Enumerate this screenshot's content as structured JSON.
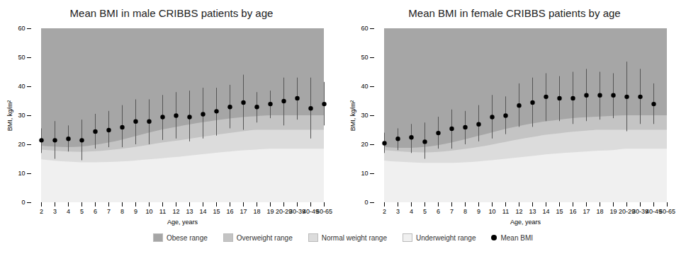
{
  "chart_data": [
    {
      "type": "scatter",
      "title": "Mean BMI in male CRIBBS patients by age",
      "x_label": "Age, years",
      "y_label": "BMI, kg/m²",
      "categories": [
        "2",
        "3",
        "4",
        "5",
        "6",
        "7",
        "8",
        "9",
        "10",
        "11",
        "12",
        "13",
        "14",
        "15",
        "16",
        "17",
        "18",
        "19",
        "20-29",
        "30-39",
        "40-49",
        "50-65"
      ],
      "ylim": [
        0,
        60
      ],
      "yticks": [
        0,
        10,
        20,
        30,
        40,
        50,
        60
      ],
      "grid": false,
      "legend": "bottom",
      "series": [
        {
          "name": "Obese range",
          "type": "area",
          "color": "#a6a6a6",
          "values": [
            60,
            60,
            60,
            60,
            60,
            60,
            60,
            60,
            60,
            60,
            60,
            60,
            60,
            60,
            60,
            60,
            60,
            60,
            60,
            60,
            60,
            60
          ]
        },
        {
          "name": "Overweight range",
          "type": "area",
          "color": "#c4c4c4",
          "values": [
            19.5,
            19.2,
            19,
            19.2,
            19.8,
            20.6,
            21.6,
            22.8,
            24,
            25.1,
            26,
            26.8,
            27.6,
            28.3,
            28.9,
            29.4,
            29.7,
            30,
            30,
            30,
            30,
            30
          ]
        },
        {
          "name": "Normal weight range",
          "type": "area",
          "color": "#dcdcdc",
          "values": [
            18.2,
            17.8,
            17.5,
            17.4,
            17.6,
            18,
            18.5,
            19.1,
            19.8,
            20.6,
            21.2,
            21.9,
            22.6,
            23.3,
            23.9,
            24.5,
            25,
            25,
            25,
            25,
            25,
            25
          ]
        },
        {
          "name": "Underweight range",
          "type": "area",
          "color": "#f0f0f0",
          "values": [
            14.8,
            14.3,
            14,
            13.8,
            13.8,
            13.9,
            14.1,
            14.4,
            14.8,
            15.2,
            15.6,
            16.1,
            16.6,
            17.1,
            17.5,
            17.9,
            18.2,
            18.5,
            18.5,
            18.5,
            18.5,
            18.5
          ]
        },
        {
          "name": "Mean BMI",
          "type": "scatter",
          "color": "#000000",
          "marker": "circle",
          "values": [
            21.5,
            21.5,
            22,
            21.5,
            24.5,
            25,
            26,
            28,
            28,
            29.5,
            30,
            29.5,
            30.5,
            31.5,
            33,
            34.5,
            33,
            34,
            35,
            36,
            32.5,
            34
          ],
          "error_low": [
            17,
            15,
            17.5,
            14.5,
            18.5,
            19,
            19,
            20,
            20,
            21.5,
            22,
            21,
            22,
            23,
            25.5,
            25,
            27.5,
            29,
            26.5,
            28.5,
            22,
            26.5
          ],
          "error_high": [
            25.5,
            28,
            26.5,
            28.5,
            30.5,
            31.5,
            33.5,
            35.5,
            35.5,
            37,
            38,
            38.5,
            39.5,
            39.5,
            40.5,
            44,
            38,
            38.5,
            43,
            43,
            43,
            41.5
          ]
        }
      ]
    },
    {
      "type": "scatter",
      "title": "Mean BMI in female CRIBBS patients by age",
      "x_label": "Age, years",
      "y_label": "BMI, kg/m²",
      "categories": [
        "2",
        "3",
        "4",
        "5",
        "6",
        "7",
        "8",
        "9",
        "10",
        "11",
        "12",
        "13",
        "14",
        "15",
        "16",
        "17",
        "18",
        "19",
        "20-29",
        "30-39",
        "40-49",
        "50-65"
      ],
      "ylim": [
        0,
        60
      ],
      "yticks": [
        0,
        10,
        20,
        30,
        40,
        50,
        60
      ],
      "grid": false,
      "legend": "bottom",
      "series": [
        {
          "name": "Obese range",
          "type": "area",
          "color": "#a6a6a6",
          "values": [
            60,
            60,
            60,
            60,
            60,
            60,
            60,
            60,
            60,
            60,
            60,
            60,
            60,
            60,
            60,
            60,
            60,
            60,
            60,
            60,
            60,
            60
          ]
        },
        {
          "name": "Overweight range",
          "type": "area",
          "color": "#c4c4c4",
          "values": [
            19.1,
            18.8,
            18.8,
            19.1,
            19.7,
            20.6,
            21.7,
            22.9,
            24.1,
            25.3,
            26.3,
            27.2,
            27.9,
            28.5,
            29,
            29.3,
            29.6,
            29.8,
            30,
            30,
            30,
            30
          ]
        },
        {
          "name": "Normal weight range",
          "type": "area",
          "color": "#dcdcdc",
          "values": [
            18,
            17.6,
            17.3,
            17.2,
            17.4,
            17.8,
            18.4,
            19.1,
            19.9,
            20.8,
            21.7,
            22.5,
            23.3,
            23.8,
            24.3,
            24.7,
            25,
            25,
            25,
            25,
            25,
            25
          ]
        },
        {
          "name": "Underweight range",
          "type": "area",
          "color": "#f0f0f0",
          "values": [
            14.4,
            14,
            13.8,
            13.6,
            13.6,
            13.6,
            13.8,
            14.1,
            14.5,
            15,
            15.5,
            16,
            16.5,
            16.9,
            17.2,
            17.5,
            17.8,
            18,
            18.5,
            18.5,
            18.5,
            18.5
          ]
        },
        {
          "name": "Mean BMI",
          "type": "scatter",
          "color": "#000000",
          "marker": "circle",
          "values": [
            20.5,
            22,
            22.5,
            21,
            24,
            25.5,
            26,
            27,
            29.5,
            30,
            33.5,
            34.5,
            36.5,
            36,
            36,
            37,
            37,
            37,
            36.5,
            36.5,
            34,
            null
          ],
          "error_low": [
            17,
            18,
            17,
            15,
            18.5,
            18.5,
            20,
            21,
            22,
            23.5,
            26,
            26,
            28,
            28,
            27,
            28,
            28.5,
            29,
            24.5,
            27,
            27,
            null
          ],
          "error_high": [
            24,
            25.5,
            27,
            27.5,
            29.5,
            32,
            31.5,
            33.5,
            37,
            36.5,
            41,
            43,
            44.5,
            43.5,
            45,
            46,
            45,
            44.5,
            48.5,
            46,
            41,
            null
          ]
        }
      ]
    }
  ]
}
